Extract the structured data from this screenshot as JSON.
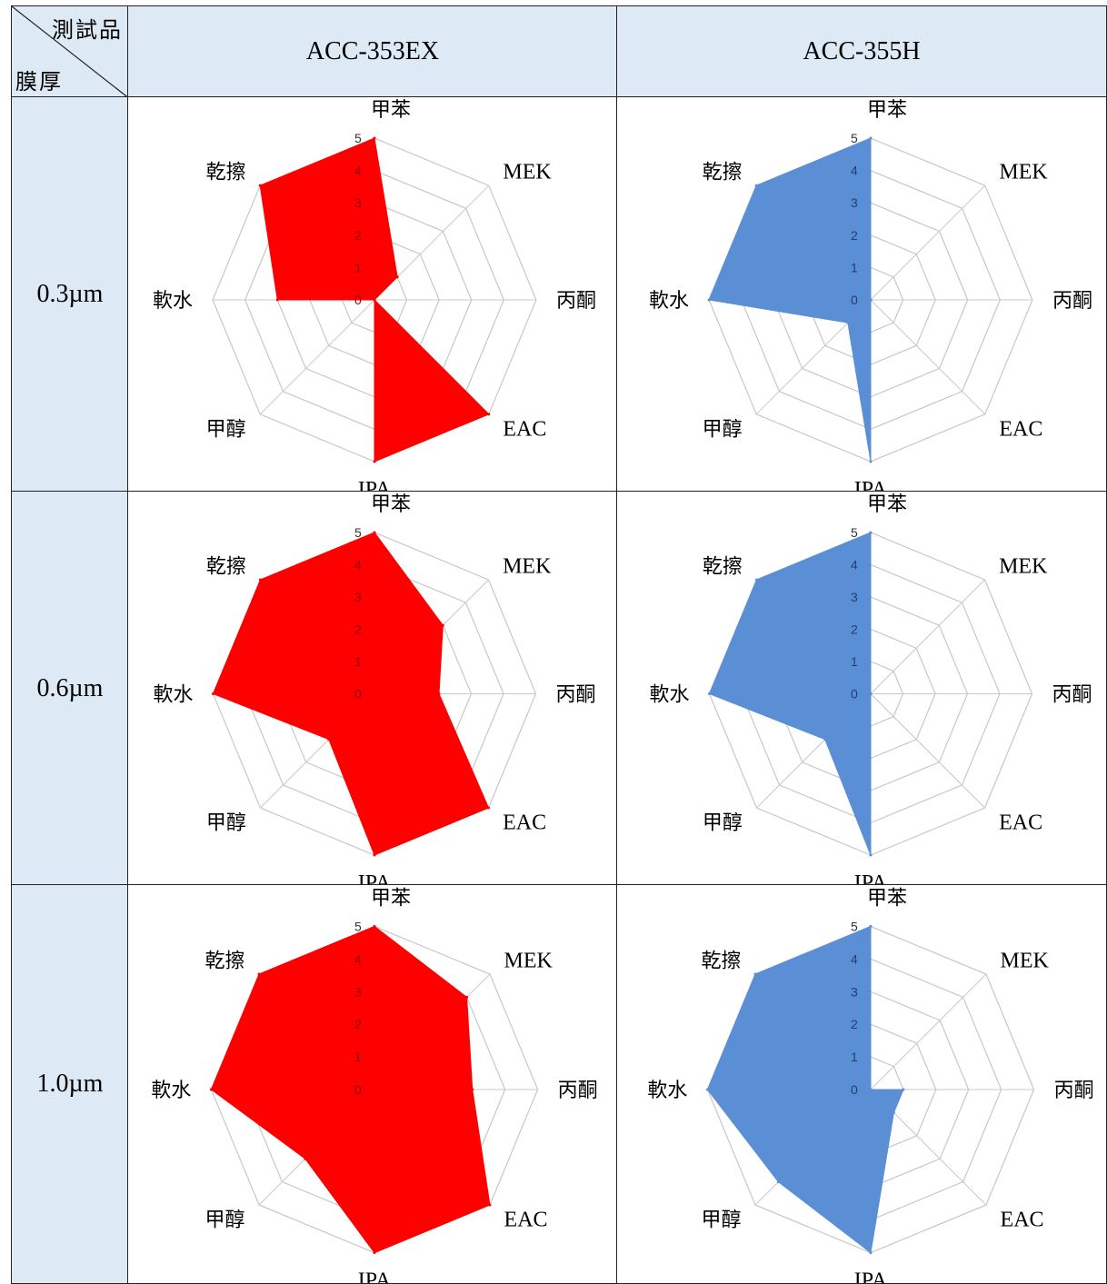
{
  "table": {
    "corner_top": "測試品",
    "corner_bottom": "膜厚",
    "columns": [
      "ACC-353EX",
      "ACC-355H"
    ],
    "rows": [
      "0.3µm",
      "0.6µm",
      "1.0µm"
    ]
  },
  "colors": {
    "header_bg": "#dde9f5",
    "acc353ex_fill": "#ff0000",
    "acc355h_fill": "#5a8fd6",
    "grid_line": "#c8c8c8"
  },
  "chart_data": [
    {
      "type": "radar",
      "row": "0.3µm",
      "product": "ACC-353EX",
      "axes": [
        "甲苯",
        "MEK",
        "丙酮",
        "EAC",
        "IPA",
        "甲醇",
        "軟水",
        "乾擦"
      ],
      "range": [
        0,
        5
      ],
      "ticks": [
        "0",
        "1",
        "2",
        "3",
        "4",
        "5"
      ],
      "values": [
        5,
        1,
        0,
        5,
        5,
        0,
        3,
        5
      ]
    },
    {
      "type": "radar",
      "row": "0.3µm",
      "product": "ACC-355H",
      "axes": [
        "甲苯",
        "MEK",
        "丙酮",
        "EAC",
        "IPA",
        "甲醇",
        "軟水",
        "乾擦"
      ],
      "range": [
        0,
        5
      ],
      "ticks": [
        "0",
        "1",
        "2",
        "3",
        "4",
        "5"
      ],
      "values": [
        5,
        0,
        0,
        0,
        5,
        1,
        5,
        5
      ]
    },
    {
      "type": "radar",
      "row": "0.6µm",
      "product": "ACC-353EX",
      "axes": [
        "甲苯",
        "MEK",
        "丙酮",
        "EAC",
        "IPA",
        "甲醇",
        "軟水",
        "乾擦"
      ],
      "range": [
        0,
        5
      ],
      "ticks": [
        "0",
        "1",
        "2",
        "3",
        "4",
        "5"
      ],
      "values": [
        5,
        3,
        2,
        5,
        5,
        2,
        5,
        5
      ]
    },
    {
      "type": "radar",
      "row": "0.6µm",
      "product": "ACC-355H",
      "axes": [
        "甲苯",
        "MEK",
        "丙酮",
        "EAC",
        "IPA",
        "甲醇",
        "軟水",
        "乾擦"
      ],
      "range": [
        0,
        5
      ],
      "ticks": [
        "0",
        "1",
        "2",
        "3",
        "4",
        "5"
      ],
      "values": [
        5,
        0,
        0,
        0,
        5,
        2,
        5,
        5
      ]
    },
    {
      "type": "radar",
      "row": "1.0µm",
      "product": "ACC-353EX",
      "axes": [
        "甲苯",
        "MEK",
        "丙酮",
        "EAC",
        "IPA",
        "甲醇",
        "軟水",
        "乾擦"
      ],
      "range": [
        0,
        5
      ],
      "ticks": [
        "0",
        "1",
        "2",
        "3",
        "4",
        "5"
      ],
      "values": [
        5,
        4,
        3,
        5,
        5,
        3,
        5,
        5
      ]
    },
    {
      "type": "radar",
      "row": "1.0µm",
      "product": "ACC-355H",
      "axes": [
        "甲苯",
        "MEK",
        "丙酮",
        "EAC",
        "IPA",
        "甲醇",
        "軟水",
        "乾擦"
      ],
      "range": [
        0,
        5
      ],
      "ticks": [
        "0",
        "1",
        "2",
        "3",
        "4",
        "5"
      ],
      "values": [
        5,
        0,
        1,
        1,
        5,
        4,
        5,
        5
      ]
    }
  ]
}
